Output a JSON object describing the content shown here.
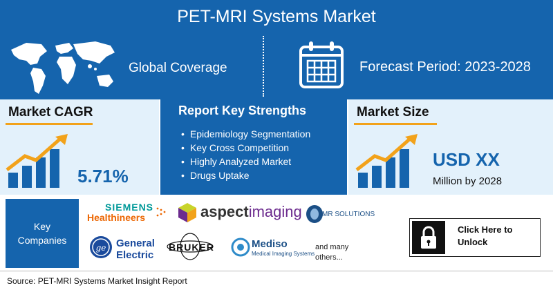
{
  "header": {
    "title": "PET-MRI Systems Market"
  },
  "coverage": {
    "label": "Global Coverage",
    "forecast": "Forecast Period: 2023-2028"
  },
  "cagr": {
    "heading": "Market CAGR",
    "value": "5.71%"
  },
  "strengths": {
    "heading": "Report Key Strengths",
    "items": [
      "Epidemiology Segmentation",
      "Key Cross Competition",
      "Highly Analyzed Market",
      "Drugs Uptake"
    ]
  },
  "market_size": {
    "heading": "Market Size",
    "value": "USD XX",
    "sub": "Million by 2028"
  },
  "companies": {
    "label_line1": "Key",
    "label_line2": "Companies",
    "siemens_top": "SIEMENS",
    "siemens_bottom": "Healthineers",
    "aspect_a": "aspect",
    "aspect_b": "imaging",
    "mr": "MR SOLUTIONS",
    "ge_line1": "General",
    "ge_line2": "Electric",
    "bruker": "BRUKER",
    "mediso": "Mediso",
    "mediso_sub": "Medical Imaging Systems",
    "many_line1": "and many",
    "many_line2": "others..."
  },
  "unlock": {
    "line1": "Click Here to",
    "line2": "Unlock"
  },
  "footer": {
    "source": "Source: PET-MRI Systems Market Insight Report"
  },
  "colors": {
    "brand_blue": "#1564ad",
    "light_blue": "#e3f1fb",
    "accent_orange": "#f2a21a"
  },
  "icons": [
    "world-map-icon",
    "calendar-icon",
    "growth-chart-icon",
    "lock-icon"
  ]
}
